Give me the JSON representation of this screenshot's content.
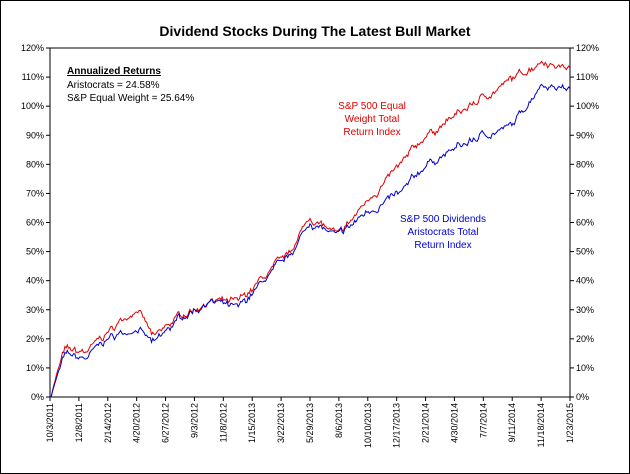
{
  "chart_data": {
    "type": "line",
    "title": "Dividend Stocks During The Latest Bull Market",
    "xlabel": "",
    "ylabel": "",
    "ylim": [
      0,
      120
    ],
    "grid": false,
    "y_ticks": [
      "0%",
      "10%",
      "20%",
      "30%",
      "40%",
      "50%",
      "60%",
      "70%",
      "80%",
      "90%",
      "100%",
      "110%",
      "120%"
    ],
    "x_ticks": [
      "10/3/2011",
      "12/8/2011",
      "2/14/2012",
      "4/20/2012",
      "6/27/2012",
      "9/3/2012",
      "11/8/2012",
      "1/15/2013",
      "3/22/2013",
      "5/29/2013",
      "8/6/2013",
      "10/10/2013",
      "12/17/2013",
      "2/21/2014",
      "4/30/2014",
      "7/7/2014",
      "9/11/2014",
      "11/18/2014",
      "1/23/2015"
    ],
    "annotation_box": {
      "heading": "Annualized Returns",
      "lines": [
        "Aristocrats = 24.58%",
        "S&P Equal Weight = 25.64%"
      ]
    },
    "series": [
      {
        "name": "S&P 500 Equal Weight Total Return Index",
        "label_lines": [
          "S&P 500 Equal",
          "Weight Total",
          "Return Index"
        ],
        "color": "#e00000",
        "x": [
          0,
          0.5,
          1.2,
          2,
          3,
          3.6,
          4.5,
          5.5,
          6.5,
          7.5,
          8.2,
          9,
          10,
          11,
          12.2,
          13,
          13.8,
          15,
          16,
          17,
          18
        ],
        "values": [
          0,
          16,
          15,
          22,
          31,
          20,
          28,
          33,
          32,
          42,
          48,
          62,
          55,
          68,
          80,
          90,
          95,
          103,
          109,
          116,
          113
        ]
      },
      {
        "name": "S&P 500 Dividends Aristocrats Total Return Index",
        "label_lines": [
          "S&P 500 Dividends",
          "Aristocrats Total",
          "Return Index"
        ],
        "color": "#0000d0",
        "x": [
          0,
          0.5,
          1.2,
          2,
          3,
          3.6,
          4.5,
          5.5,
          6.5,
          7.5,
          8.2,
          9,
          10,
          11,
          12.2,
          13,
          13.8,
          15,
          16,
          17,
          18
        ],
        "values": [
          0,
          14,
          13,
          20,
          24,
          18,
          27,
          33,
          30,
          41,
          47,
          60,
          55,
          64,
          70,
          80,
          84,
          90,
          93,
          108,
          106
        ]
      }
    ]
  }
}
